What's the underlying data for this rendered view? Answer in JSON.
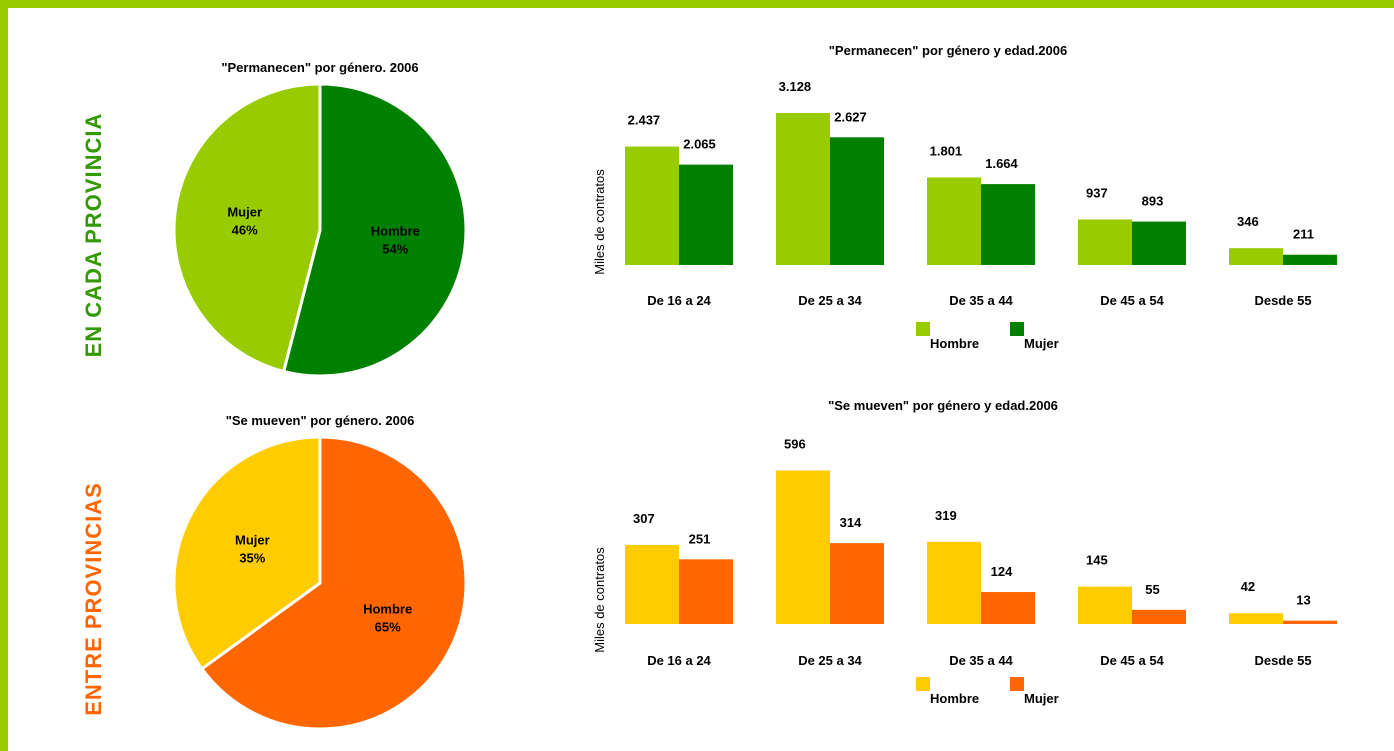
{
  "side_labels": {
    "top": {
      "text": "EN CADA PROVINCIA",
      "color": "#339900"
    },
    "bottom": {
      "text": "ENTRE PROVINCIAS",
      "color": "#ff6600"
    }
  },
  "chart_data": [
    {
      "id": "pie_permanecen",
      "type": "pie",
      "title": "\"Permanecen\" por género. 2006",
      "slices": [
        {
          "label": "Hombre",
          "value": 54,
          "value_label": "54%",
          "color": "#008000"
        },
        {
          "label": "Mujer",
          "value": 46,
          "value_label": "46%",
          "color": "#99cc00"
        }
      ]
    },
    {
      "id": "bar_permanecen",
      "type": "bar",
      "title": "\"Permanecen\" por género y edad.2006",
      "ylabel": "Miles de contratos",
      "categories": [
        "De 16 a 24",
        "De 25 a 34",
        "De 35 a 44",
        "De 45 a 54",
        "Desde 55"
      ],
      "series": [
        {
          "name": "Hombre",
          "color": "#99cc00",
          "values": [
            2437,
            3128,
            1801,
            937,
            346
          ],
          "labels": [
            "2.437",
            "3.128",
            "1.801",
            "937",
            "346"
          ]
        },
        {
          "name": "Mujer",
          "color": "#008000",
          "values": [
            2065,
            2627,
            1664,
            893,
            211
          ],
          "labels": [
            "2.065",
            "2.627",
            "1.664",
            "893",
            "211"
          ]
        }
      ],
      "ylim": [
        0,
        3600
      ],
      "legend": "bottom"
    },
    {
      "id": "pie_mueven",
      "type": "pie",
      "title": "\"Se mueven\" por género. 2006",
      "slices": [
        {
          "label": "Hombre",
          "value": 65,
          "value_label": "65%",
          "color": "#ff6600"
        },
        {
          "label": "Mujer",
          "value": 35,
          "value_label": "35%",
          "color": "#ffcc00"
        }
      ]
    },
    {
      "id": "bar_mueven",
      "type": "bar",
      "title": "\"Se mueven\" por género y edad.2006",
      "ylabel": "Miles de contratos",
      "categories": [
        "De 16 a 24",
        "De 25 a 34",
        "De 35 a 44",
        "De 45 a 54",
        "Desde 55"
      ],
      "series": [
        {
          "name": "Hombre",
          "color": "#ffcc00",
          "values": [
            307,
            596,
            319,
            145,
            42
          ],
          "labels": [
            "307",
            "596",
            "319",
            "145",
            "42"
          ]
        },
        {
          "name": "Mujer",
          "color": "#ff6600",
          "values": [
            251,
            314,
            124,
            55,
            13
          ],
          "labels": [
            "251",
            "314",
            "124",
            "55",
            "13"
          ]
        }
      ],
      "ylim": [
        0,
        660
      ],
      "legend": "bottom"
    }
  ]
}
